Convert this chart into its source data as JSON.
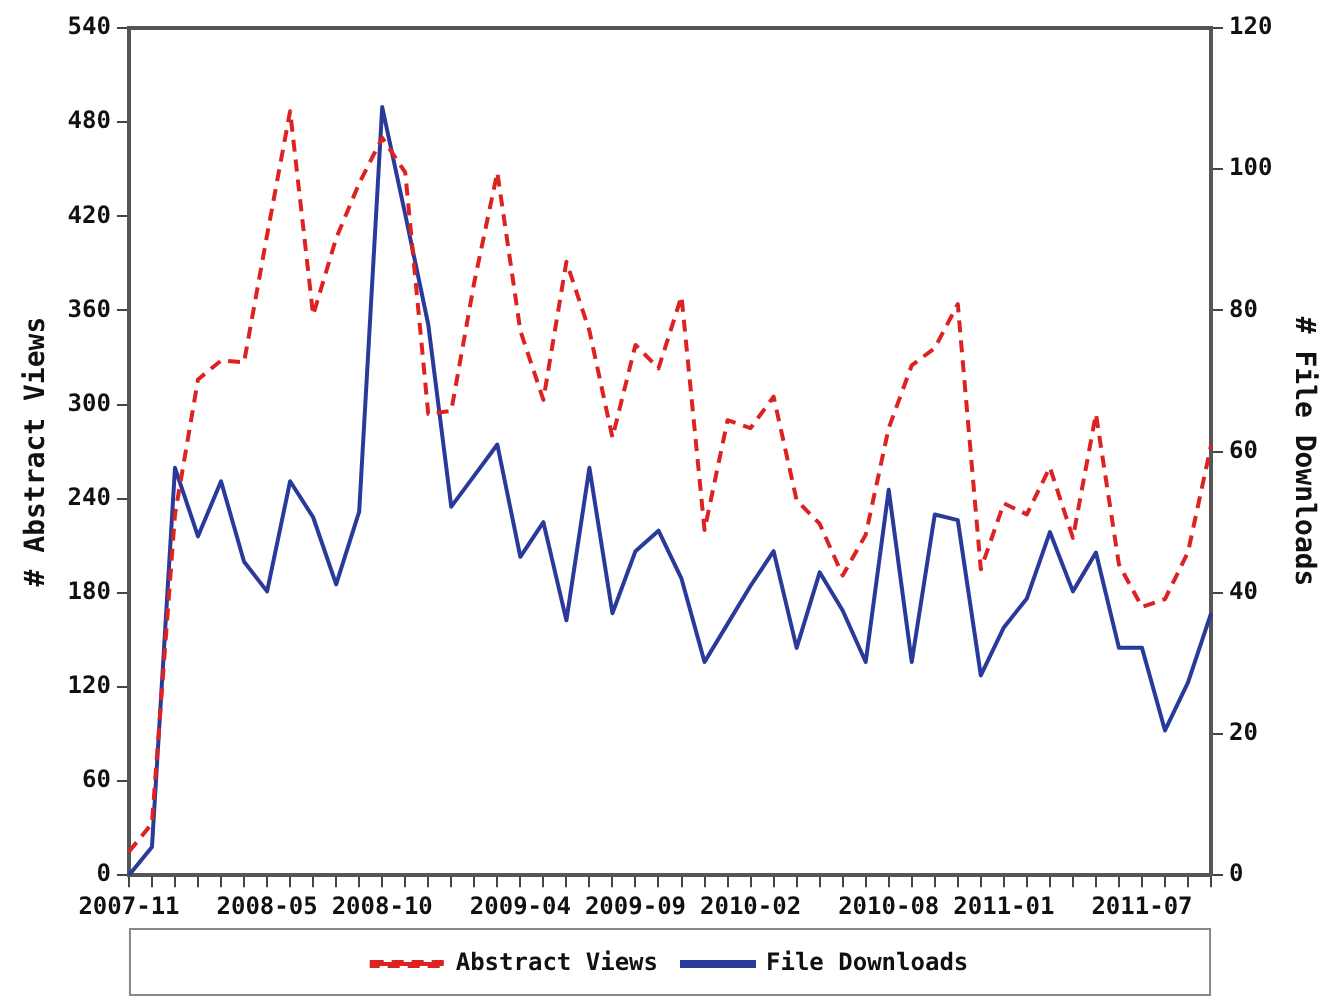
{
  "chart_data": {
    "type": "line",
    "ylabel": "# Abstract Views",
    "y2label": "# File Downloads",
    "categories": [
      "2007-11",
      null,
      null,
      null,
      null,
      null,
      "2008-05",
      null,
      null,
      null,
      null,
      "2008-10",
      null,
      null,
      null,
      null,
      null,
      "2009-04",
      null,
      null,
      null,
      null,
      "2009-09",
      null,
      null,
      null,
      null,
      "2010-02",
      null,
      null,
      null,
      null,
      null,
      "2010-08",
      null,
      null,
      null,
      null,
      "2011-01",
      null,
      null,
      null,
      null,
      null,
      "2011-07",
      null,
      null,
      null
    ],
    "series": [
      {
        "name": "Abstract Views",
        "color": "#dd2222",
        "line_style": "dashed",
        "values": [
          15,
          33,
          230,
          316,
          328,
          327,
          408,
          487,
          357,
          406,
          441,
          470,
          448,
          294,
          296,
          378,
          448,
          347,
          303,
          391,
          347,
          279,
          338,
          323,
          369,
          220,
          290,
          285,
          305,
          239,
          224,
          191,
          217,
          285,
          325,
          336,
          364,
          195,
          237,
          230,
          260,
          215,
          294,
          198,
          171,
          176,
          206,
          274
        ]
      },
      {
        "name": "File Downloads",
        "color": "#2a3a9a",
        "axis": "y2",
        "line_style": "solid",
        "values": [
          0,
          4,
          57.7,
          48,
          55.8,
          44.4,
          40.2,
          55.8,
          50.7,
          41.2,
          51.5,
          108.8,
          93.6,
          78,
          52.2,
          56.6,
          61,
          45.1,
          50,
          36.1,
          57.7,
          37.1,
          45.9,
          48.8,
          42,
          30.2,
          35.6,
          41,
          45.9,
          32.2,
          42.9,
          37.5,
          30.2,
          54.6,
          30.2,
          51.1,
          50.3,
          28.3,
          35.1,
          39.2,
          48.6,
          40.2,
          45.7,
          32.2,
          32.2,
          20.5,
          27.3,
          37.1
        ]
      }
    ],
    "ylim": [
      0,
      540
    ],
    "yticks": [
      0,
      60,
      120,
      180,
      240,
      300,
      360,
      420,
      480,
      540
    ],
    "y2lim": [
      0,
      120
    ],
    "y2ticks": [
      0,
      20,
      40,
      60,
      80,
      100,
      120
    ],
    "grid": false,
    "legend": "bottom",
    "marker": "none"
  }
}
